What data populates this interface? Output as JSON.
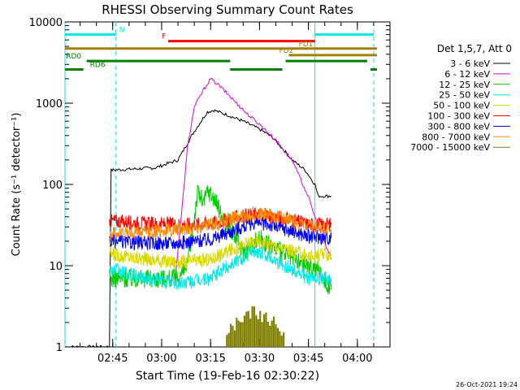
{
  "chart_data": {
    "type": "line",
    "title": "RHESSI Observing Summary Count Rates",
    "xlabel": "Start Time (19-Feb-16 02:30:22)",
    "ylabel": "Count Rate (s⁻¹ detector⁻¹)",
    "yscale": "log",
    "ylim": [
      1,
      10000
    ],
    "xlim": [
      "02:30:22",
      "04:10:00"
    ],
    "x_ticks": [
      "02:45",
      "03:00",
      "03:15",
      "03:30",
      "03:45",
      "04:00"
    ],
    "y_ticks": [
      "1",
      "10",
      "100",
      "1000",
      "10000"
    ],
    "legend_title": "Det 1,5,7, Att 0",
    "legend_position": "right",
    "timestamp": "26-Oct-2021 19:24",
    "series": [
      {
        "name": "3 - 6 keV",
        "color": "#000000",
        "x": [
          "02:30:22",
          "02:44:00",
          "02:44:30",
          "02:58:00",
          "03:05:00",
          "03:10:00",
          "03:14:00",
          "03:16:00",
          "03:20:00",
          "03:25:00",
          "03:30:00",
          "03:34:00",
          "03:38:00",
          "03:40:00",
          "03:44:00",
          "03:47:00",
          "03:48:00",
          "03:52:00"
        ],
        "y": [
          1,
          1,
          150,
          160,
          200,
          450,
          780,
          820,
          720,
          600,
          480,
          380,
          250,
          200,
          150,
          100,
          72,
          72
        ]
      },
      {
        "name": "6 - 12 keV",
        "color": "#e000e0",
        "x": [
          "03:04:00",
          "03:06:00",
          "03:08:00",
          "03:10:00",
          "03:13:00",
          "03:15:00",
          "03:18:00",
          "03:22:00",
          "03:26:00",
          "03:30:00",
          "03:35:00",
          "03:40:00",
          "03:45:00",
          "03:48:00",
          "03:52:00"
        ],
        "y": [
          6,
          40,
          300,
          900,
          1500,
          2000,
          1600,
          1100,
          750,
          550,
          350,
          200,
          70,
          30,
          12
        ]
      },
      {
        "name": "12 - 25 keV",
        "color": "#00cc00",
        "x": [
          "02:44:00",
          "02:55:00",
          "03:05:00",
          "03:08:00",
          "03:10:00",
          "03:11:00",
          "03:13:00",
          "03:14:00",
          "03:16:00",
          "03:18:00",
          "03:25:00",
          "03:30:00",
          "03:40:00",
          "03:48:00",
          "03:52:00"
        ],
        "y": [
          7,
          7,
          7,
          10,
          40,
          80,
          60,
          85,
          70,
          45,
          15,
          22,
          12,
          9,
          5
        ]
      },
      {
        "name": "25 - 50 keV",
        "color": "#00e8e8",
        "x": [
          "02:44:00",
          "02:55:00",
          "03:05:00",
          "03:15:00",
          "03:22:00",
          "03:28:00",
          "03:32:00",
          "03:38:00",
          "03:45:00",
          "03:52:00"
        ],
        "y": [
          9,
          7,
          6,
          7,
          11,
          15,
          14,
          10,
          7,
          7
        ]
      },
      {
        "name": "50 - 100 keV",
        "color": "#d8d800",
        "x": [
          "02:44:00",
          "02:55:00",
          "03:05:00",
          "03:15:00",
          "03:22:00",
          "03:28:00",
          "03:32:00",
          "03:38:00",
          "03:45:00",
          "03:52:00"
        ],
        "y": [
          14,
          12,
          11,
          12,
          16,
          20,
          19,
          16,
          13,
          14
        ]
      },
      {
        "name": "100 - 300 keV",
        "color": "#ff0000",
        "x": [
          "02:44:00",
          "02:55:00",
          "03:05:00",
          "03:15:00",
          "03:22:00",
          "03:28:00",
          "03:32:00",
          "03:38:00",
          "03:45:00",
          "03:52:00"
        ],
        "y": [
          36,
          33,
          32,
          33,
          38,
          43,
          42,
          38,
          32,
          32
        ]
      },
      {
        "name": "300 - 800 keV",
        "color": "#0000ff",
        "x": [
          "02:44:00",
          "02:55:00",
          "03:05:00",
          "03:15:00",
          "03:22:00",
          "03:28:00",
          "03:32:00",
          "03:38:00",
          "03:45:00",
          "03:52:00"
        ],
        "y": [
          20,
          19,
          19,
          21,
          27,
          34,
          33,
          28,
          23,
          22
        ]
      },
      {
        "name": "800 - 7000 keV",
        "color": "#ff8800",
        "x": [
          "02:44:00",
          "02:55:00",
          "03:05:00",
          "03:15:00",
          "03:22:00",
          "03:28:00",
          "03:32:00",
          "03:38:00",
          "03:45:00",
          "03:52:00"
        ],
        "y": [
          25,
          26,
          28,
          32,
          38,
          44,
          43,
          38,
          30,
          28
        ]
      },
      {
        "name": "7000 - 15000 keV",
        "color": "#808000",
        "x": [
          "03:20:00",
          "03:22:00",
          "03:24:00",
          "03:26:00",
          "03:28:00",
          "03:30:00",
          "03:32:00",
          "03:34:00",
          "03:36:00",
          "03:38:00"
        ],
        "y": [
          1.6,
          2.0,
          2.4,
          2.8,
          3.2,
          3.0,
          2.8,
          2.4,
          2.0,
          1.6
        ]
      }
    ],
    "annotations": [
      {
        "label": "N",
        "color": "#00e8e8",
        "start": "02:30:22",
        "end": "02:46:00",
        "level": 7000,
        "label_at": "02:47:00"
      },
      {
        "label": "",
        "color": "#00e8e8",
        "start": "03:47:00",
        "end": "04:05:00",
        "level": 7000
      },
      {
        "label": "F",
        "color": "#ff0000",
        "start": "03:02:00",
        "end": "03:47:00",
        "level": 5800,
        "label_at": "03:00:00"
      },
      {
        "label": "FD1",
        "color": "#a08000",
        "start": "02:30:22",
        "end": "04:06:00",
        "level": 4700,
        "label_at": "03:42:00"
      },
      {
        "label": "FD2",
        "color": "#a08000",
        "start": "03:39:00",
        "end": "04:06:00",
        "level": 3900,
        "label_at": "03:36:00"
      },
      {
        "label": "RD0",
        "color": "#008000",
        "start": "02:37:00",
        "end": "03:21:00",
        "level": 3300,
        "label_at": "02:30:40"
      },
      {
        "label": "",
        "color": "#008000",
        "start": "03:38:00",
        "end": "04:03:00",
        "level": 3300
      },
      {
        "label": "RD6",
        "color": "#008000",
        "start": "02:30:22",
        "end": "02:36:00",
        "level": 2600,
        "label_at": "02:38:00"
      },
      {
        "label": "",
        "color": "#008000",
        "start": "03:21:00",
        "end": "03:37:00",
        "level": 2600
      },
      {
        "label": "",
        "color": "#008000",
        "start": "04:04:00",
        "end": "04:06:00",
        "level": 2600
      }
    ],
    "vertical_markers": [
      {
        "time": "02:30:22",
        "color": "#00e8e8",
        "style": "solid"
      },
      {
        "time": "02:46:00",
        "color": "#00e8e8",
        "style": "dashed"
      },
      {
        "time": "03:47:00",
        "color": "#00e8e8",
        "style": "solid"
      },
      {
        "time": "04:05:00",
        "color": "#00e8e8",
        "style": "dashed"
      }
    ]
  }
}
